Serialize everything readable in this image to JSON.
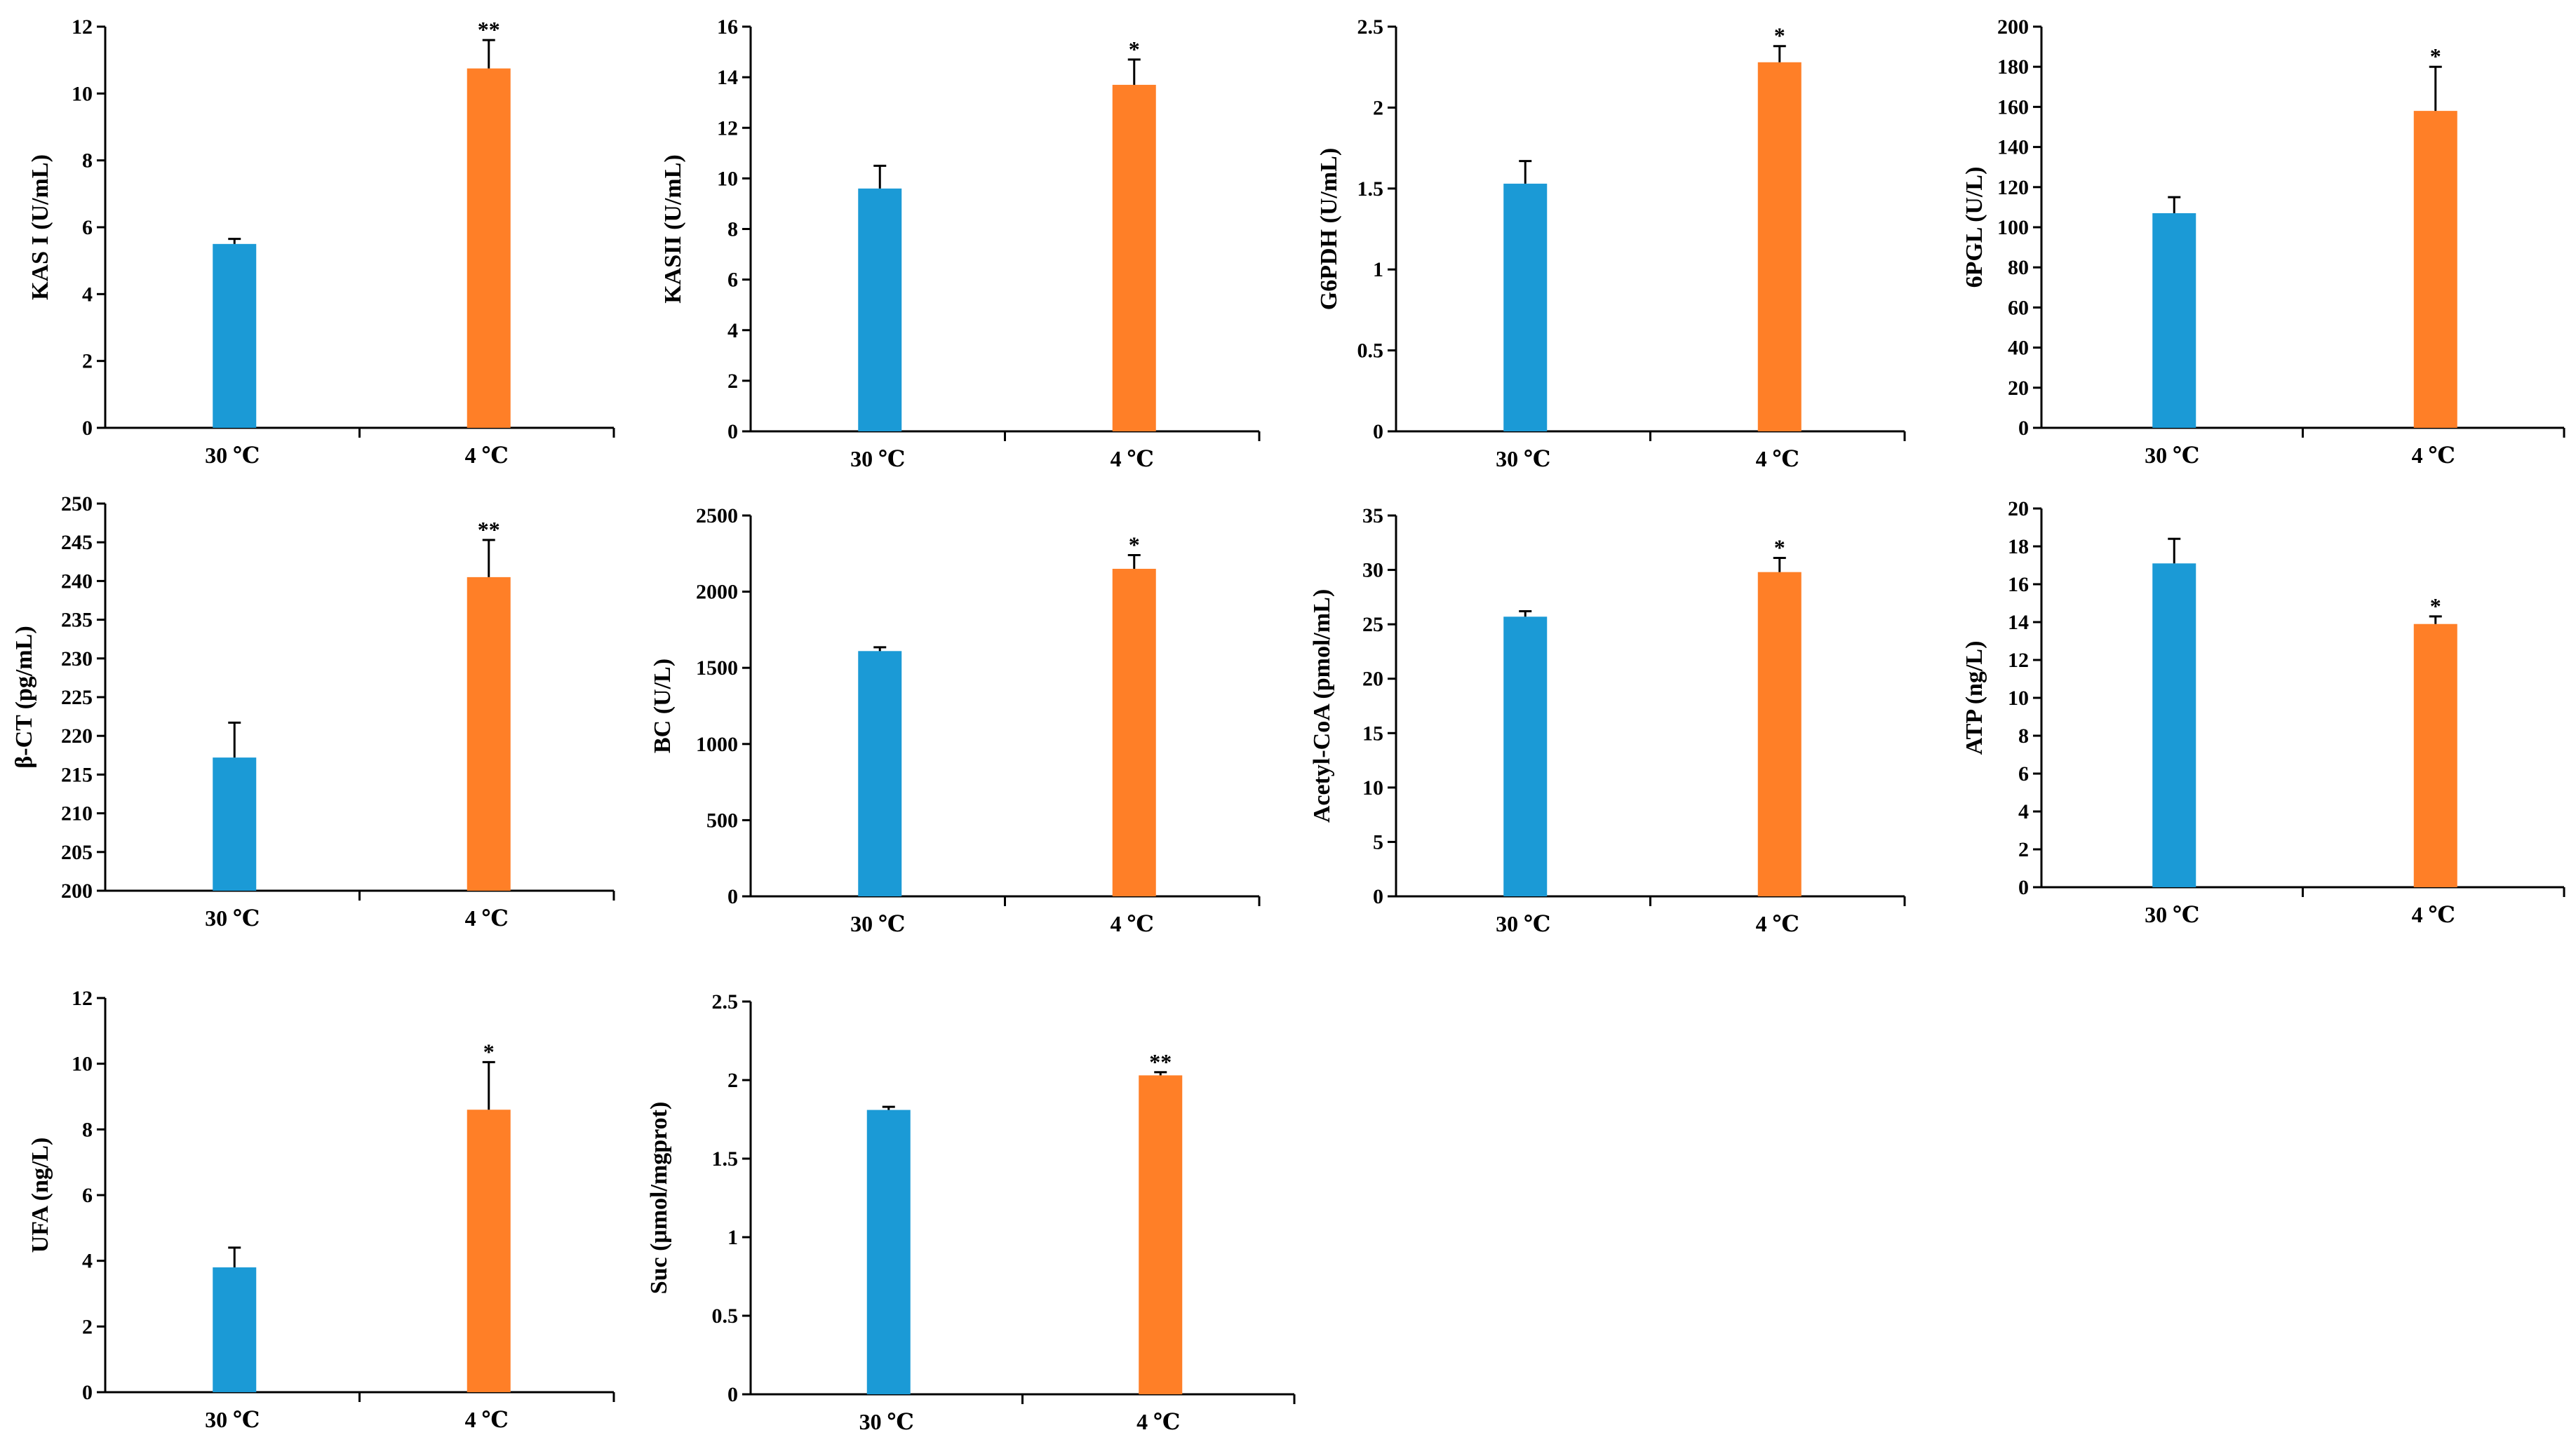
{
  "colors": {
    "control": "#1B9AD6",
    "cold": "#FF7F27"
  },
  "chart_data": [
    {
      "type": "bar",
      "ylabel": "KAS I (U/mL)",
      "categories": [
        "30 ℃",
        "4 ℃"
      ],
      "values": [
        5.5,
        10.75
      ],
      "errors": [
        0.15,
        0.85
      ],
      "significance": [
        "",
        "**"
      ],
      "ylim": [
        0,
        12
      ],
      "yticks": [
        "0",
        "2",
        "4",
        "6",
        "8",
        "10",
        "12"
      ]
    },
    {
      "type": "bar",
      "ylabel": "KASII (U/mL)",
      "categories": [
        "30 ℃",
        "4 ℃"
      ],
      "values": [
        9.6,
        13.7
      ],
      "errors": [
        0.9,
        1.0
      ],
      "significance": [
        "",
        "*"
      ],
      "ylim": [
        0,
        16
      ],
      "yticks": [
        "0",
        "2",
        "4",
        "6",
        "8",
        "10",
        "12",
        "14",
        "16"
      ]
    },
    {
      "type": "bar",
      "ylabel": "G6PDH (U/mL)",
      "categories": [
        "30 ℃",
        "4 ℃"
      ],
      "values": [
        1.53,
        2.28
      ],
      "errors": [
        0.14,
        0.1
      ],
      "significance": [
        "",
        "*"
      ],
      "ylim": [
        0,
        2.5
      ],
      "yticks": [
        "0",
        "0.5",
        "1",
        "1.5",
        "2",
        "2.5"
      ]
    },
    {
      "type": "bar",
      "ylabel": "6PGL (U/L)",
      "categories": [
        "30 ℃",
        "4 ℃"
      ],
      "values": [
        107,
        158
      ],
      "errors": [
        8,
        22
      ],
      "significance": [
        "",
        "*"
      ],
      "ylim": [
        0,
        200
      ],
      "yticks": [
        "0",
        "20",
        "40",
        "60",
        "80",
        "100",
        "120",
        "140",
        "160",
        "180",
        "200"
      ]
    },
    {
      "type": "bar",
      "ylabel": "β-CT (pg/mL)",
      "categories": [
        "30 ℃",
        "4 ℃"
      ],
      "values": [
        217.2,
        240.5
      ],
      "errors": [
        4.5,
        4.8
      ],
      "significance": [
        "",
        "**"
      ],
      "ylim": [
        200,
        250
      ],
      "yticks": [
        "200",
        "205",
        "210",
        "215",
        "220",
        "225",
        "230",
        "235",
        "240",
        "245",
        "250"
      ]
    },
    {
      "type": "bar",
      "ylabel": "BC (U/L)",
      "categories": [
        "30 ℃",
        "4 ℃"
      ],
      "values": [
        1610,
        2150
      ],
      "errors": [
        25,
        90
      ],
      "significance": [
        "",
        "*"
      ],
      "ylim": [
        0,
        2500
      ],
      "yticks": [
        "0",
        "500",
        "1000",
        "1500",
        "2000",
        "2500"
      ]
    },
    {
      "type": "bar",
      "ylabel": "Acetyl-CoA (pmol/mL)",
      "categories": [
        "30 ℃",
        "4 ℃"
      ],
      "values": [
        25.7,
        29.8
      ],
      "errors": [
        0.5,
        1.3
      ],
      "significance": [
        "",
        "*"
      ],
      "ylim": [
        0,
        35
      ],
      "yticks": [
        "0",
        "5",
        "10",
        "15",
        "20",
        "25",
        "30",
        "35"
      ]
    },
    {
      "type": "bar",
      "ylabel": "ATP  (ng/L)",
      "categories": [
        "30 ℃",
        "4 ℃"
      ],
      "values": [
        17.1,
        13.9
      ],
      "errors": [
        1.3,
        0.4
      ],
      "significance": [
        "",
        "*"
      ],
      "ylim": [
        0,
        20
      ],
      "yticks": [
        "0",
        "2",
        "4",
        "6",
        "8",
        "10",
        "12",
        "14",
        "16",
        "18",
        "20"
      ]
    },
    {
      "type": "bar",
      "ylabel": "UFA (ng/L)",
      "categories": [
        "30 ℃",
        "4 ℃"
      ],
      "values": [
        3.8,
        8.6
      ],
      "errors": [
        0.6,
        1.45
      ],
      "significance": [
        "",
        "*"
      ],
      "ylim": [
        0,
        12
      ],
      "yticks": [
        "0",
        "2",
        "4",
        "6",
        "8",
        "10",
        "12"
      ]
    },
    {
      "type": "bar",
      "ylabel": "Suc (μmol/mgprot)",
      "categories": [
        "30 ℃",
        "4 ℃"
      ],
      "values": [
        1.81,
        2.03
      ],
      "errors": [
        0.02,
        0.02
      ],
      "significance": [
        "",
        "**"
      ],
      "ylim": [
        0,
        2.5
      ],
      "yticks": [
        "0",
        "0.5",
        "1",
        "1.5",
        "2",
        "2.5"
      ]
    }
  ]
}
